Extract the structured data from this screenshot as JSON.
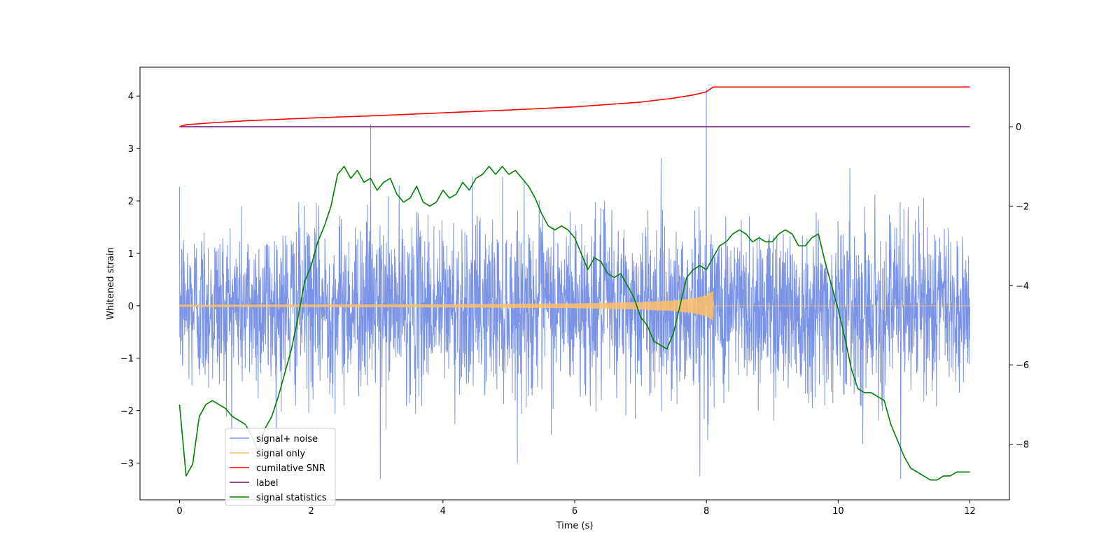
{
  "chart_data": {
    "type": "line",
    "title": "",
    "xlabel": "Time (s)",
    "ylabel": "Whitened strain",
    "y2label": "",
    "xlim": [
      -0.6,
      12.6
    ],
    "ylim": [
      -3.7,
      4.55
    ],
    "y2lim": [
      -9.4,
      1.5
    ],
    "xticks": [
      0,
      2,
      4,
      6,
      8,
      10,
      12
    ],
    "yticks": [
      -3,
      -2,
      -1,
      0,
      1,
      2,
      3,
      4
    ],
    "y2ticks": [
      -8,
      -6,
      -4,
      -2,
      0
    ],
    "tick_labels": {
      "x": [
        "0",
        "2",
        "4",
        "6",
        "8",
        "10",
        "12"
      ],
      "y": [
        "−3",
        "−2",
        "−1",
        "0",
        "1",
        "2",
        "3",
        "4"
      ],
      "y2": [
        "−8",
        "−6",
        "−4",
        "−2",
        "0"
      ]
    },
    "legend_position": "lower-left",
    "series": [
      {
        "name": "signal+ noise",
        "color": "#7b93e6",
        "axis": "left",
        "description": "noisy whitened strain spanning 0-12 s, typical amplitude about ±1.8 with spikes",
        "x_range": [
          0,
          12
        ],
        "typical_range": [
          -1.8,
          1.8
        ],
        "spikes": [
          {
            "x": 2.9,
            "y": 3.45
          },
          {
            "x": 8.0,
            "y": 4.15
          },
          {
            "x": 3.05,
            "y": -3.3
          },
          {
            "x": 7.9,
            "y": -3.25
          },
          {
            "x": 10.95,
            "y": -3.3
          }
        ]
      },
      {
        "name": "signal only",
        "color": "#ffbf66",
        "axis": "left",
        "description": "chirp growing in amplitude until merger at about 8.1 s, zero afterwards",
        "x_range": [
          0,
          12
        ],
        "envelope": {
          "x": [
            0,
            2,
            4,
            6,
            7,
            7.5,
            7.8,
            8.0,
            8.1,
            8.11,
            12
          ],
          "amp": [
            0.02,
            0.025,
            0.03,
            0.045,
            0.07,
            0.1,
            0.14,
            0.2,
            0.28,
            0,
            0
          ]
        }
      },
      {
        "name": "cumilative SNR",
        "color": "#ff0000",
        "axis": "right",
        "x": [
          0,
          0.1,
          0.5,
          1,
          2,
          3,
          4,
          5,
          6,
          7,
          7.5,
          7.8,
          8.0,
          8.1,
          9,
          10,
          11,
          12
        ],
        "values": [
          0,
          0.05,
          0.1,
          0.15,
          0.22,
          0.28,
          0.35,
          0.42,
          0.5,
          0.62,
          0.72,
          0.8,
          0.88,
          1.0,
          1.0,
          1.0,
          1.0,
          1.0
        ]
      },
      {
        "name": "label",
        "color": "#6a0d6e",
        "axis": "right",
        "x": [
          0,
          12
        ],
        "values": [
          0,
          0
        ]
      },
      {
        "name": "signal statistics",
        "color": "#008000",
        "axis": "right",
        "x": [
          0,
          0.1,
          0.2,
          0.3,
          0.4,
          0.5,
          0.6,
          0.7,
          0.8,
          0.9,
          1.0,
          1.1,
          1.2,
          1.3,
          1.4,
          1.5,
          1.6,
          1.7,
          1.8,
          1.9,
          2.0,
          2.1,
          2.2,
          2.3,
          2.4,
          2.5,
          2.6,
          2.7,
          2.8,
          2.9,
          3.0,
          3.1,
          3.2,
          3.3,
          3.4,
          3.5,
          3.6,
          3.7,
          3.8,
          3.9,
          4.0,
          4.1,
          4.2,
          4.3,
          4.4,
          4.5,
          4.6,
          4.7,
          4.8,
          4.9,
          5.0,
          5.1,
          5.2,
          5.3,
          5.4,
          5.5,
          5.6,
          5.7,
          5.8,
          5.9,
          6.0,
          6.1,
          6.2,
          6.3,
          6.4,
          6.5,
          6.6,
          6.7,
          6.8,
          6.9,
          7.0,
          7.1,
          7.2,
          7.3,
          7.4,
          7.5,
          7.6,
          7.7,
          7.8,
          7.9,
          8.0,
          8.1,
          8.2,
          8.3,
          8.4,
          8.5,
          8.6,
          8.7,
          8.8,
          8.9,
          9.0,
          9.1,
          9.2,
          9.3,
          9.4,
          9.5,
          9.6,
          9.7,
          9.8,
          9.9,
          10.0,
          10.1,
          10.2,
          10.3,
          10.4,
          10.5,
          10.6,
          10.7,
          10.8,
          10.9,
          11.0,
          11.1,
          11.2,
          11.3,
          11.4,
          11.5,
          11.6,
          11.7,
          11.8,
          11.9,
          12.0
        ],
        "values": [
          -7.0,
          -8.8,
          -8.5,
          -7.3,
          -7.0,
          -6.9,
          -7.0,
          -7.1,
          -7.3,
          -7.4,
          -7.5,
          -7.8,
          -8.2,
          -7.6,
          -7.3,
          -6.8,
          -6.2,
          -5.6,
          -4.8,
          -3.9,
          -3.5,
          -2.9,
          -2.5,
          -2.0,
          -1.2,
          -1.0,
          -1.3,
          -1.1,
          -1.4,
          -1.3,
          -1.6,
          -1.4,
          -1.3,
          -1.7,
          -1.9,
          -1.8,
          -1.5,
          -1.9,
          -2.0,
          -1.9,
          -1.6,
          -1.8,
          -1.7,
          -1.4,
          -1.6,
          -1.3,
          -1.2,
          -1.0,
          -1.2,
          -1.0,
          -1.2,
          -1.1,
          -1.3,
          -1.5,
          -1.8,
          -2.2,
          -2.5,
          -2.6,
          -2.5,
          -2.6,
          -2.8,
          -3.2,
          -3.6,
          -3.3,
          -3.4,
          -3.7,
          -3.8,
          -3.7,
          -4.0,
          -4.3,
          -4.8,
          -5.0,
          -5.4,
          -5.5,
          -5.6,
          -5.2,
          -4.5,
          -3.8,
          -3.6,
          -3.5,
          -3.6,
          -3.3,
          -3.0,
          -2.9,
          -2.7,
          -2.6,
          -2.7,
          -2.9,
          -2.8,
          -2.9,
          -2.9,
          -2.7,
          -2.6,
          -2.7,
          -3.0,
          -3.0,
          -2.8,
          -2.7,
          -3.4,
          -4.0,
          -4.6,
          -5.3,
          -6.1,
          -6.6,
          -6.7,
          -6.7,
          -6.8,
          -6.9,
          -7.5,
          -7.9,
          -8.3,
          -8.6,
          -8.7,
          -8.8,
          -8.9,
          -8.9,
          -8.8,
          -8.8,
          -8.7,
          -8.7,
          -8.7
        ]
      }
    ]
  }
}
